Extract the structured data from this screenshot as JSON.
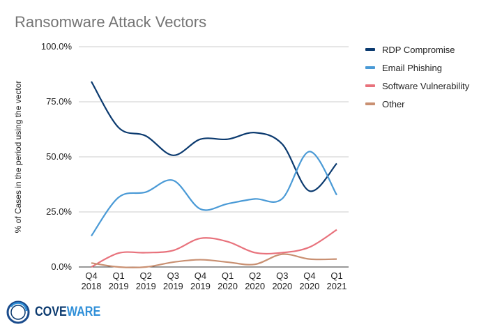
{
  "chart_data": {
    "type": "line",
    "title": "Ransomware Attack Vectors",
    "xlabel": "",
    "ylabel": "% of Cases in the period using the vector",
    "categories": [
      [
        "Q4",
        "2018"
      ],
      [
        "Q1",
        "2019"
      ],
      [
        "Q2",
        "2019"
      ],
      [
        "Q3",
        "2019"
      ],
      [
        "Q4",
        "2019"
      ],
      [
        "Q1",
        "2020"
      ],
      [
        "Q2",
        "2020"
      ],
      [
        "Q3",
        "2020"
      ],
      [
        "Q4",
        "2020"
      ],
      [
        "Q1",
        "2021"
      ]
    ],
    "ylim": [
      0,
      100
    ],
    "yticks": [
      "0.0%",
      "25.0%",
      "50.0%",
      "75.0%",
      "100.0%"
    ],
    "grid": true,
    "legend": "right",
    "series": [
      {
        "name": "RDP Compromise",
        "color": "#0b3a6f",
        "values": [
          84.2,
          63.3,
          59.5,
          50.7,
          58,
          58,
          61,
          55.8,
          34.5,
          47
        ]
      },
      {
        "name": "Email Phishing",
        "color": "#4a9ad6",
        "values": [
          14.1,
          31.6,
          34,
          39.3,
          26.3,
          28.7,
          30.9,
          31,
          52.4,
          32.7
        ]
      },
      {
        "name": "Software Vulnerability",
        "color": "#e8727c",
        "values": [
          0,
          6.3,
          6.5,
          7.5,
          13,
          11.5,
          6.5,
          6.5,
          9,
          16.9
        ]
      },
      {
        "name": "Other",
        "color": "#c99072",
        "values": [
          1.8,
          0,
          0,
          2.2,
          3.3,
          2.2,
          1.2,
          5.8,
          3.6,
          3.6
        ]
      }
    ]
  },
  "logo": {
    "text": "COVEWARE",
    "part1": "COVE",
    "part2": "WARE"
  }
}
